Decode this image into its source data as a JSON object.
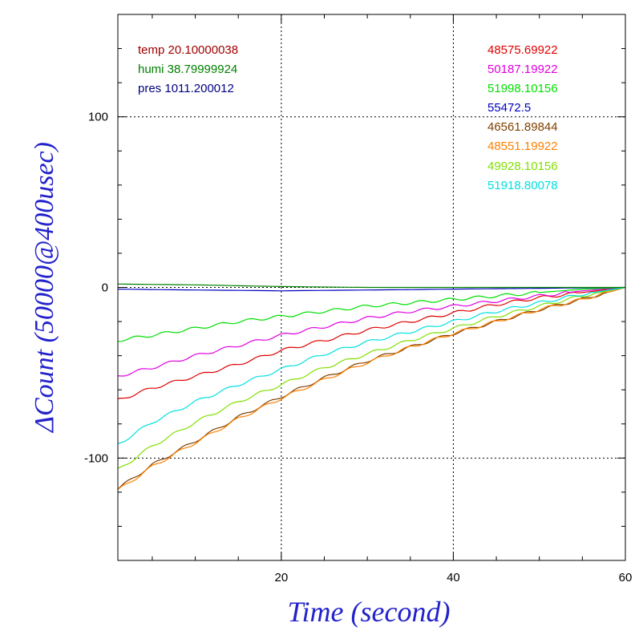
{
  "chart_data": {
    "type": "line",
    "xlabel": "Time (second)",
    "ylabel": "ΔCount (50000@400usec)",
    "xlim": [
      1,
      60
    ],
    "ylim": [
      -160,
      160
    ],
    "x_ticks": [
      20,
      40,
      60
    ],
    "y_ticks": [
      -100,
      0,
      100
    ],
    "grid": "dotted at labeled ticks",
    "info_labels": [
      {
        "text": "temp 20.10000038",
        "color": "#a00000"
      },
      {
        "text": "humi 38.79999924",
        "color": "#008000"
      },
      {
        "text": "pres 1011.200012",
        "color": "#000080"
      }
    ],
    "series": [
      {
        "name": "48575.69922",
        "color": "#e00000",
        "points": [
          [
            1,
            -66
          ],
          [
            5,
            -59
          ],
          [
            10,
            -52
          ],
          [
            15,
            -45
          ],
          [
            20,
            -37
          ],
          [
            25,
            -31
          ],
          [
            30,
            -25
          ],
          [
            35,
            -20
          ],
          [
            40,
            -15
          ],
          [
            45,
            -10
          ],
          [
            50,
            -6
          ],
          [
            55,
            -3
          ],
          [
            60,
            0
          ]
        ]
      },
      {
        "name": "50187.19922",
        "color": "#e000e0",
        "points": [
          [
            1,
            -52
          ],
          [
            5,
            -47
          ],
          [
            10,
            -40
          ],
          [
            15,
            -34
          ],
          [
            20,
            -28
          ],
          [
            25,
            -23
          ],
          [
            30,
            -18
          ],
          [
            35,
            -14
          ],
          [
            40,
            -11
          ],
          [
            45,
            -8
          ],
          [
            50,
            -5
          ],
          [
            55,
            -2
          ],
          [
            60,
            0
          ]
        ]
      },
      {
        "name": "51998.10156",
        "color": "#00e000",
        "points": [
          [
            1,
            -31
          ],
          [
            5,
            -28
          ],
          [
            10,
            -24
          ],
          [
            15,
            -20
          ],
          [
            20,
            -17
          ],
          [
            25,
            -14
          ],
          [
            30,
            -11
          ],
          [
            35,
            -9
          ],
          [
            40,
            -7
          ],
          [
            45,
            -5
          ],
          [
            50,
            -3
          ],
          [
            55,
            -1
          ],
          [
            60,
            0
          ]
        ]
      },
      {
        "name": "55472.5",
        "color": "#0000c0",
        "points": [
          [
            1,
            -1
          ],
          [
            10,
            -1.5
          ],
          [
            20,
            -2
          ],
          [
            30,
            -1.5
          ],
          [
            40,
            -1
          ],
          [
            50,
            -0.5
          ],
          [
            60,
            0
          ]
        ]
      },
      {
        "name": "46561.89844",
        "color": "#804000",
        "points": [
          [
            1,
            -118
          ],
          [
            5,
            -104
          ],
          [
            10,
            -90
          ],
          [
            15,
            -76
          ],
          [
            20,
            -64
          ],
          [
            25,
            -53
          ],
          [
            30,
            -43
          ],
          [
            35,
            -35
          ],
          [
            40,
            -27
          ],
          [
            45,
            -20
          ],
          [
            50,
            -13
          ],
          [
            55,
            -7
          ],
          [
            60,
            0
          ]
        ]
      },
      {
        "name": "48551.19922",
        "color": "#ff8000",
        "points": [
          [
            1,
            -119
          ],
          [
            5,
            -105
          ],
          [
            10,
            -91
          ],
          [
            15,
            -77
          ],
          [
            20,
            -65
          ],
          [
            25,
            -54
          ],
          [
            30,
            -44
          ],
          [
            35,
            -35
          ],
          [
            40,
            -27
          ],
          [
            45,
            -20
          ],
          [
            50,
            -13
          ],
          [
            55,
            -7
          ],
          [
            60,
            0
          ]
        ]
      },
      {
        "name": "49928.10156",
        "color": "#80e000",
        "points": [
          [
            1,
            -107
          ],
          [
            5,
            -93
          ],
          [
            10,
            -79
          ],
          [
            15,
            -67
          ],
          [
            20,
            -57
          ],
          [
            25,
            -47
          ],
          [
            30,
            -39
          ],
          [
            35,
            -31
          ],
          [
            40,
            -24
          ],
          [
            45,
            -17
          ],
          [
            50,
            -11
          ],
          [
            55,
            -5
          ],
          [
            60,
            0
          ]
        ]
      },
      {
        "name": "51918.80078",
        "color": "#00e0e0",
        "points": [
          [
            1,
            -92
          ],
          [
            5,
            -79
          ],
          [
            10,
            -67
          ],
          [
            15,
            -57
          ],
          [
            20,
            -48
          ],
          [
            25,
            -39
          ],
          [
            30,
            -32
          ],
          [
            35,
            -26
          ],
          [
            40,
            -20
          ],
          [
            45,
            -14
          ],
          [
            50,
            -9
          ],
          [
            55,
            -4
          ],
          [
            60,
            0
          ]
        ]
      },
      {
        "name": "",
        "color": "#008000",
        "points": [
          [
            1,
            2
          ],
          [
            10,
            1.5
          ],
          [
            20,
            0.5
          ],
          [
            30,
            0
          ],
          [
            40,
            0
          ],
          [
            60,
            0
          ]
        ]
      }
    ]
  }
}
